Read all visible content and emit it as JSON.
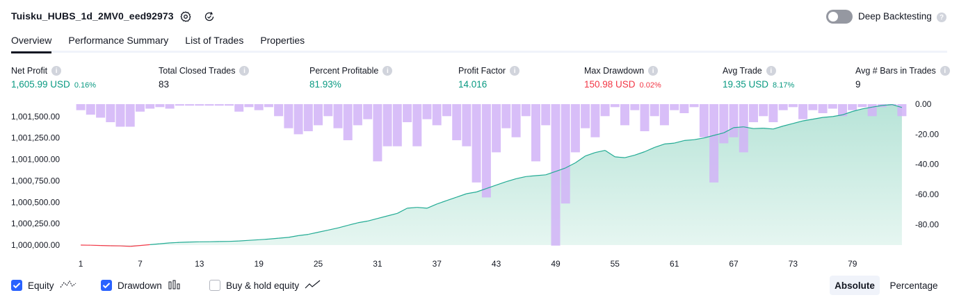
{
  "header": {
    "strategy_name": "Tuisku_HUBS_1d_2MV0_eed92973",
    "deep_backtesting_label": "Deep Backtesting"
  },
  "tabs": [
    {
      "label": "Overview",
      "active": true
    },
    {
      "label": "Performance Summary",
      "active": false
    },
    {
      "label": "List of Trades",
      "active": false
    },
    {
      "label": "Properties",
      "active": false
    }
  ],
  "metrics": {
    "net_profit": {
      "label": "Net Profit",
      "value": "1,605.99 USD",
      "pct": "0.16%"
    },
    "total_closed_trades": {
      "label": "Total Closed Trades",
      "value": "83"
    },
    "percent_profitable": {
      "label": "Percent Profitable",
      "value": "81.93%"
    },
    "profit_factor": {
      "label": "Profit Factor",
      "value": "14.016"
    },
    "max_drawdown": {
      "label": "Max Drawdown",
      "value": "150.98 USD",
      "pct": "0.02%"
    },
    "avg_trade": {
      "label": "Avg Trade",
      "value": "19.35 USD",
      "pct": "8.17%"
    },
    "avg_bars": {
      "label": "Avg # Bars in Trades",
      "value": "9"
    }
  },
  "legend": {
    "equity": "Equity",
    "drawdown": "Drawdown",
    "buy_hold": "Buy & hold equity",
    "equity_checked": true,
    "drawdown_checked": true,
    "buy_hold_checked": false
  },
  "mode": {
    "absolute": "Absolute",
    "percentage": "Percentage",
    "selected": "Absolute"
  },
  "colors": {
    "equity_line": "#22ab94",
    "equity_negative": "#f23645",
    "equity_fill": "#d3efe8",
    "drawdown_bar": "#d1b3f7",
    "accent": "#2962ff"
  },
  "chart_data": {
    "type": "area",
    "x_ticks": [
      "1",
      "7",
      "13",
      "19",
      "25",
      "31",
      "37",
      "43",
      "49",
      "55",
      "61",
      "67",
      "73",
      "79"
    ],
    "left_axis": {
      "ticks": [
        "1,000,000.00",
        "1,000,250.00",
        "1,000,500.00",
        "1,000,750.00",
        "1,001,000.00",
        "1,001,250.00",
        "1,001,500.00"
      ],
      "range": [
        1000000,
        1001645
      ]
    },
    "right_axis": {
      "ticks": [
        "0.00",
        "-20.00",
        "-40.00",
        "-60.00",
        "-80.00"
      ],
      "range": [
        0,
        -95
      ]
    },
    "series": [
      {
        "name": "Equity",
        "x_range": [
          1,
          84
        ],
        "values": [
          1000000,
          999998,
          999995,
          999992,
          999990,
          999985,
          999995,
          1000005,
          1000015,
          1000025,
          1000032,
          1000036,
          1000038,
          1000039,
          1000041,
          1000043,
          1000048,
          1000055,
          1000062,
          1000070,
          1000080,
          1000090,
          1000110,
          1000125,
          1000150,
          1000175,
          1000200,
          1000230,
          1000260,
          1000280,
          1000310,
          1000340,
          1000370,
          1000430,
          1000440,
          1000430,
          1000480,
          1000520,
          1000560,
          1000600,
          1000620,
          1000660,
          1000700,
          1000740,
          1000775,
          1000800,
          1000810,
          1000820,
          1000860,
          1000900,
          1000960,
          1001040,
          1001080,
          1001105,
          1001030,
          1001020,
          1001050,
          1001090,
          1001140,
          1001180,
          1001190,
          1001220,
          1001230,
          1001250,
          1001280,
          1001310,
          1001370,
          1001380,
          1001360,
          1001365,
          1001355,
          1001390,
          1001420,
          1001450,
          1001470,
          1001490,
          1001500,
          1001520,
          1001560,
          1001590,
          1001610,
          1001630,
          1001640,
          1001606
        ]
      },
      {
        "name": "Drawdown",
        "type": "bar",
        "x_range": [
          1,
          84
        ],
        "values": [
          -4,
          -7,
          -9,
          -12,
          -15,
          -15,
          -5,
          -3,
          -2,
          -3,
          -1,
          -1,
          -1,
          -1,
          -1,
          -1,
          -5,
          -2,
          -4,
          -2,
          -8,
          -16,
          -20,
          -18,
          -14,
          -8,
          -16,
          -24,
          -14,
          -10,
          -38,
          -28,
          -28,
          -12,
          -28,
          -10,
          -14,
          -8,
          -24,
          -28,
          -52,
          -62,
          -32,
          -16,
          -22,
          -8,
          -38,
          -14,
          -94,
          -66,
          -32,
          -16,
          -22,
          -8,
          -2,
          -14,
          -4,
          -18,
          -8,
          -14,
          -4,
          -6,
          -2,
          -22,
          -52,
          -26,
          -22,
          -32,
          -12,
          -8,
          -12,
          -4,
          -2,
          -10,
          -4,
          -6,
          -3,
          -8,
          -4,
          -2,
          -8,
          -2,
          -1,
          -8
        ]
      }
    ]
  }
}
